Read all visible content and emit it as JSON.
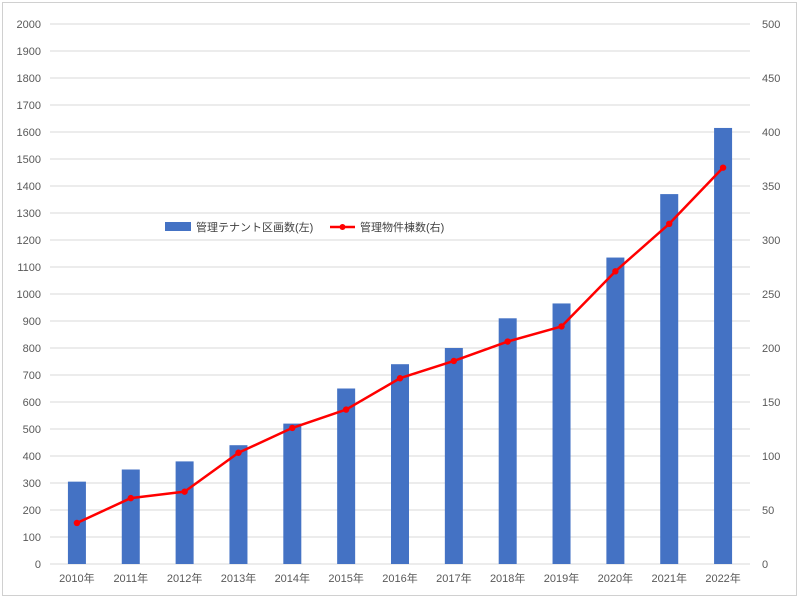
{
  "chart_data": {
    "type": "bar+line",
    "categories": [
      "2010年",
      "2011年",
      "2012年",
      "2013年",
      "2014年",
      "2015年",
      "2016年",
      "2017年",
      "2018年",
      "2019年",
      "2020年",
      "2021年",
      "2022年"
    ],
    "series": [
      {
        "name": "管理テナント区画数(左)",
        "type": "bar",
        "axis": "left",
        "color": "#4472C4",
        "values": [
          305,
          350,
          380,
          440,
          520,
          650,
          740,
          800,
          910,
          965,
          1135,
          1370,
          1615
        ]
      },
      {
        "name": "管理物件棟数(右)",
        "type": "line",
        "axis": "right",
        "color": "#FF0000",
        "values": [
          38,
          61,
          67,
          103,
          126,
          143,
          172,
          188,
          206,
          220,
          271,
          315,
          367
        ]
      }
    ],
    "yleft": {
      "ylim": [
        0,
        2000
      ],
      "ticks": [
        "0",
        "100",
        "200",
        "300",
        "400",
        "500",
        "600",
        "700",
        "800",
        "900",
        "1000",
        "1100",
        "1200",
        "1300",
        "1400",
        "1500",
        "1600",
        "1700",
        "1800",
        "1900",
        "2000"
      ]
    },
    "yright": {
      "ylim": [
        0,
        500
      ],
      "ticks": [
        "0",
        "50",
        "100",
        "150",
        "200",
        "250",
        "300",
        "350",
        "400",
        "450",
        "500"
      ]
    },
    "grid": true,
    "legend": "top-center"
  }
}
